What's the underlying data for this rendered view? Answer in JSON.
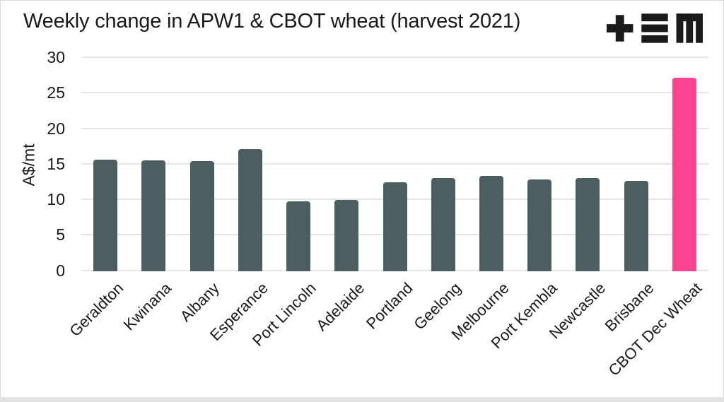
{
  "header": {
    "logo_icon": "tem-logo"
  },
  "colors": {
    "bar": "#4c5e5f",
    "highlight": "#fc4694",
    "grid": "#e5e5e5",
    "text": "#1a1a1a",
    "footer_strip": "#e3e3e3"
  },
  "chart_data": {
    "type": "bar",
    "title": "Weekly change in APW1 & CBOT wheat (harvest 2021)",
    "xlabel": "",
    "ylabel": "A$/mt",
    "ylim": [
      0,
      30
    ],
    "yticks": [
      0,
      5,
      10,
      15,
      20,
      25,
      30
    ],
    "grid": true,
    "legend_position": "none",
    "x_tick_rotation": -45,
    "categories": [
      "Geraldton",
      "Kwinana",
      "Albany",
      "Esperance",
      "Port Lincoln",
      "Adelaide",
      "Portland",
      "Geelong",
      "Melbourne",
      "Port Kembla",
      "Newcastle",
      "Brisbane",
      "CBOT Dec Wheat"
    ],
    "values": [
      15.6,
      15.5,
      15.4,
      17.1,
      9.7,
      9.9,
      12.4,
      13.0,
      13.3,
      12.8,
      13.0,
      12.6,
      27.1
    ],
    "highlight_index": 12,
    "bar_color": "#4c5e5f",
    "highlight_color": "#fc4694"
  }
}
